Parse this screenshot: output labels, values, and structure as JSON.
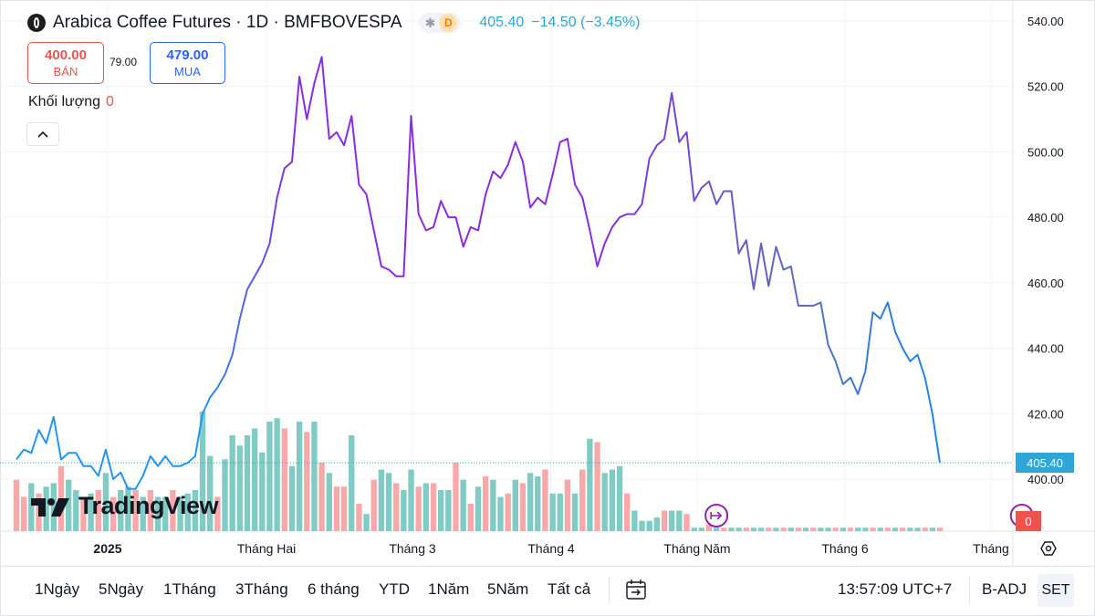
{
  "header": {
    "title": "Arabica Coffee Futures · 1D · BMFBOVESPA",
    "badge_letter": "D",
    "last": "405.40",
    "change": "−14.50 (−3.45%)"
  },
  "trade": {
    "sell_price": "400.00",
    "sell_label": "BÁN",
    "spread": "79.00",
    "buy_price": "479.00",
    "buy_label": "MUA"
  },
  "volume_legend": {
    "label": "Khối lượng",
    "value": "0"
  },
  "watermark": "TradingView",
  "price_axis": {
    "last_label": "405.40",
    "volume_label": "0"
  },
  "toolbar": {
    "ranges": [
      "1Ngày",
      "5Ngày",
      "1Tháng",
      "3Tháng",
      "6 tháng",
      "YTD",
      "1Năm",
      "5Năm",
      "Tất cả"
    ],
    "time": "13:57:09 UTC+7",
    "badj": "B-ADJ",
    "set": "SET"
  },
  "colors": {
    "line_start": "#2196f3",
    "line_mid": "#8a2be2",
    "line_end": "#1e88e5",
    "vol_up": "#80cbc4",
    "vol_down": "#f7a8a8",
    "last_price": "#2fa5d8",
    "event_icon": "#8e24aa"
  },
  "chart_data": {
    "type": "line",
    "title": "Arabica Coffee Futures · 1D · BMFBOVESPA",
    "x_ticks": [
      "2025",
      "Tháng Hai",
      "Tháng 3",
      "Tháng 4",
      "Tháng Năm",
      "Tháng 6",
      "Tháng"
    ],
    "y_ticks": [
      "540.00",
      "520.00",
      "500.00",
      "480.00",
      "460.00",
      "440.00",
      "420.00",
      "400.00"
    ],
    "ylim": [
      384,
      544
    ],
    "grid": true,
    "series": [
      {
        "values": [
          406,
          409,
          408,
          415,
          411,
          419,
          406,
          408,
          408,
          404,
          404,
          401,
          409,
          400,
          402,
          397,
          397,
          401,
          407,
          404,
          407,
          404,
          404,
          405,
          407,
          420,
          425,
          428,
          432,
          438,
          449,
          458,
          462,
          466,
          472,
          486,
          495,
          497,
          523,
          510,
          521,
          529,
          504,
          506,
          502,
          511,
          490,
          487,
          476,
          465,
          464,
          462,
          462,
          511,
          481,
          476,
          477,
          485,
          480,
          480,
          471,
          477,
          476,
          487,
          494,
          492,
          496,
          503,
          497,
          483,
          486,
          484,
          493,
          503,
          504,
          490,
          486,
          476,
          465,
          472,
          477,
          480,
          481,
          481,
          484,
          498,
          502,
          504,
          518,
          503,
          506,
          485,
          489,
          491,
          484,
          488,
          488,
          469,
          473,
          458,
          472,
          459,
          471,
          464,
          465,
          453,
          453,
          453,
          454,
          441,
          436,
          429,
          431,
          426,
          433,
          451,
          449,
          454,
          445,
          440,
          436,
          438,
          431,
          420,
          405
        ]
      }
    ],
    "volume": {
      "values": [
        15,
        10,
        14,
        11,
        13,
        14,
        19,
        15,
        12,
        10,
        11,
        12,
        17,
        10,
        12,
        13,
        12,
        10,
        12,
        10,
        10,
        12,
        10,
        11,
        12,
        35,
        22,
        10,
        21,
        28,
        25,
        28,
        30,
        23,
        32,
        33,
        30,
        19,
        32,
        29,
        32,
        20,
        17,
        13,
        13,
        28,
        8,
        5,
        15,
        18,
        17,
        14,
        12,
        18,
        13,
        14,
        14,
        12,
        12,
        20,
        15,
        8,
        13,
        16,
        15,
        10,
        11,
        15,
        14,
        17,
        16,
        18,
        11,
        11,
        15,
        11,
        18,
        27,
        26,
        17,
        18,
        19,
        11,
        6,
        3,
        3,
        4,
        6,
        6,
        6,
        5,
        1,
        1,
        2,
        1,
        1,
        1,
        1,
        1,
        1,
        1,
        1,
        1,
        1,
        1,
        1,
        1,
        1,
        1,
        1,
        1,
        1,
        1,
        1,
        1,
        1,
        1,
        1,
        1,
        1,
        1,
        1,
        1,
        1,
        1
      ],
      "up": [
        0,
        0,
        1,
        0,
        1,
        1,
        0,
        1,
        1,
        0,
        1,
        0,
        1,
        0,
        1,
        1,
        0,
        1,
        0,
        1,
        1,
        0,
        1,
        1,
        1,
        1,
        1,
        0,
        1,
        1,
        1,
        1,
        1,
        1,
        1,
        1,
        0,
        1,
        1,
        0,
        1,
        0,
        1,
        0,
        0,
        1,
        0,
        1,
        0,
        1,
        1,
        0,
        1,
        1,
        0,
        1,
        0,
        1,
        1,
        0,
        1,
        0,
        1,
        0,
        1,
        1,
        0,
        1,
        0,
        1,
        1,
        0,
        1,
        1,
        0,
        1,
        0,
        1,
        0,
        1,
        1,
        1,
        0,
        1,
        1,
        1,
        1,
        0,
        1,
        1,
        0,
        1,
        1,
        0,
        1,
        0,
        1,
        1,
        0,
        1,
        1,
        0,
        1,
        0,
        1,
        0,
        1,
        0,
        1,
        1,
        0,
        1,
        0,
        1,
        1,
        0,
        1,
        0,
        1,
        0,
        1,
        1,
        0,
        1,
        0
      ]
    },
    "events_x": [
      94,
      135,
      205
    ]
  }
}
